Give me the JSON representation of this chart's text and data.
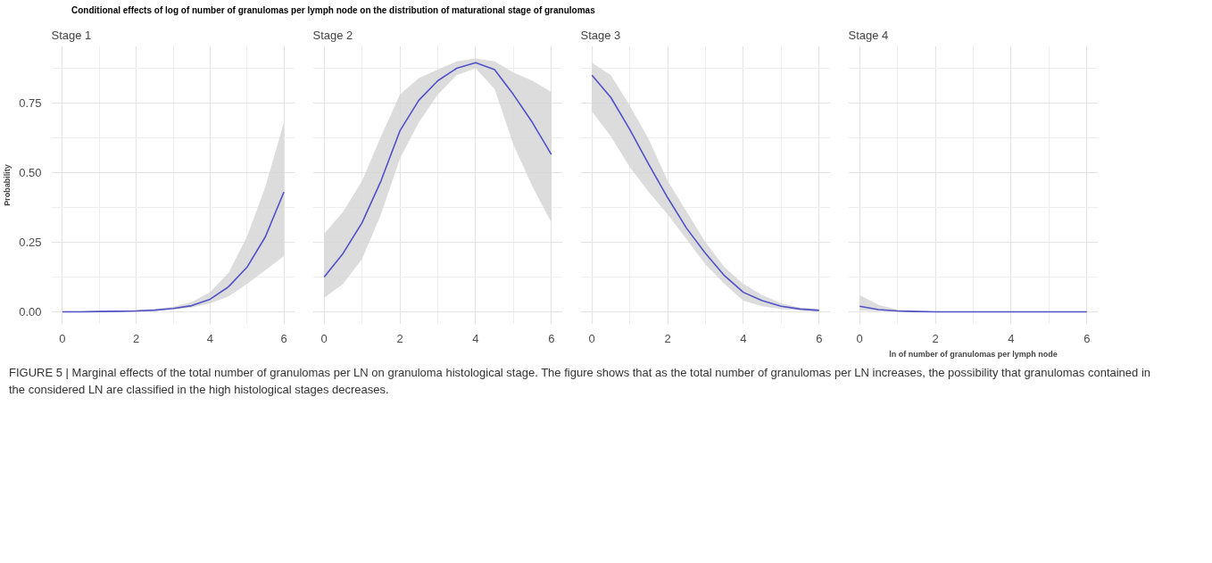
{
  "chart_data": [
    {
      "type": "line",
      "title": "Conditional effects of log of number of granulomas per lymph node on the distribution of maturational stage of granulomas",
      "subtitle": "Stage 1",
      "ylabel": "Probability",
      "x": [
        0,
        0.5,
        1,
        1.5,
        2,
        2.5,
        3,
        3.5,
        4,
        4.5,
        5,
        5.5,
        6
      ],
      "xlim": [
        -0.3,
        6.3
      ],
      "xticks": [
        0,
        2,
        4,
        6
      ],
      "ylim": [
        -0.045,
        0.955
      ],
      "yticks": [
        {
          "value": 0,
          "label": "0.00"
        },
        {
          "value": 0.25,
          "label": "0.25"
        },
        {
          "value": 0.5,
          "label": "0.50"
        },
        {
          "value": 0.75,
          "label": "0.75"
        }
      ],
      "grid": true,
      "series": [
        {
          "color": "#5050c8",
          "values": [
            0,
            0,
            0.001,
            0.002,
            0.003,
            0.006,
            0.012,
            0.022,
            0.045,
            0.09,
            0.16,
            0.27,
            0.43
          ],
          "lower": [
            0,
            0,
            0,
            0.001,
            0.002,
            0.004,
            0.008,
            0.015,
            0.03,
            0.055,
            0.1,
            0.15,
            0.2
          ],
          "upper": [
            0.002,
            0.002,
            0.003,
            0.004,
            0.006,
            0.01,
            0.018,
            0.035,
            0.07,
            0.14,
            0.27,
            0.45,
            0.68
          ]
        }
      ]
    },
    {
      "type": "line",
      "subtitle": "Stage 2",
      "x": [
        0,
        0.5,
        1,
        1.5,
        2,
        2.5,
        3,
        3.5,
        4,
        4.5,
        5,
        5.5,
        6
      ],
      "xlim": [
        -0.3,
        6.3
      ],
      "xticks": [
        0,
        2,
        4,
        6
      ],
      "ylim": [
        -0.045,
        0.955
      ],
      "grid": true,
      "tick_labels": "x",
      "series": [
        {
          "color": "#5050c8",
          "values": [
            0.125,
            0.21,
            0.32,
            0.47,
            0.65,
            0.76,
            0.83,
            0.875,
            0.895,
            0.87,
            0.78,
            0.68,
            0.565
          ],
          "lower": [
            0.05,
            0.1,
            0.19,
            0.35,
            0.55,
            0.68,
            0.78,
            0.85,
            0.875,
            0.8,
            0.6,
            0.45,
            0.32
          ],
          "upper": [
            0.28,
            0.36,
            0.47,
            0.63,
            0.78,
            0.84,
            0.87,
            0.9,
            0.91,
            0.9,
            0.86,
            0.83,
            0.79
          ]
        }
      ]
    },
    {
      "type": "line",
      "subtitle": "Stage 3",
      "x": [
        0,
        0.5,
        1,
        1.5,
        2,
        2.5,
        3,
        3.5,
        4,
        4.5,
        5,
        5.5,
        6
      ],
      "xlim": [
        -0.3,
        6.3
      ],
      "xticks": [
        0,
        2,
        4,
        6
      ],
      "ylim": [
        -0.045,
        0.955
      ],
      "grid": true,
      "tick_labels": "x",
      "series": [
        {
          "color": "#5050c8",
          "values": [
            0.85,
            0.77,
            0.655,
            0.53,
            0.41,
            0.3,
            0.21,
            0.13,
            0.07,
            0.04,
            0.02,
            0.01,
            0.005
          ],
          "lower": [
            0.72,
            0.63,
            0.52,
            0.43,
            0.35,
            0.26,
            0.17,
            0.1,
            0.04,
            0.02,
            0.01,
            0.005,
            0
          ],
          "upper": [
            0.895,
            0.85,
            0.74,
            0.62,
            0.47,
            0.36,
            0.25,
            0.16,
            0.1,
            0.06,
            0.03,
            0.015,
            0.01
          ]
        }
      ]
    },
    {
      "type": "line",
      "subtitle": "Stage 4",
      "xlabel": "ln of number of granulomas per lymph node",
      "x": [
        0,
        0.5,
        1,
        1.5,
        2,
        2.5,
        3,
        3.5,
        4,
        4.5,
        5,
        5.5,
        6
      ],
      "xlim": [
        -0.3,
        6.3
      ],
      "xticks": [
        0,
        2,
        4,
        6
      ],
      "ylim": [
        -0.045,
        0.955
      ],
      "grid": true,
      "tick_labels": "x",
      "annotations": [
        "FIGURE 5 | Marginal effects of the total number of granulomas per LN on granuloma histological stage. The figure shows that as the total number of granulomas per LN increases, the possibility that granulomas contained in the considered LN are classified in the high histological stages decreases."
      ],
      "series": [
        {
          "color": "#5050c8",
          "values": [
            0.02,
            0.008,
            0.003,
            0.001,
            0,
            0,
            0,
            0,
            0,
            0,
            0,
            0,
            0
          ],
          "lower": [
            0.005,
            0.002,
            0,
            0,
            0,
            0,
            0,
            0,
            0,
            0,
            0,
            0,
            0
          ],
          "upper": [
            0.06,
            0.025,
            0.008,
            0.003,
            0.001,
            0,
            0,
            0,
            0,
            0,
            0,
            0,
            0
          ]
        }
      ]
    }
  ]
}
